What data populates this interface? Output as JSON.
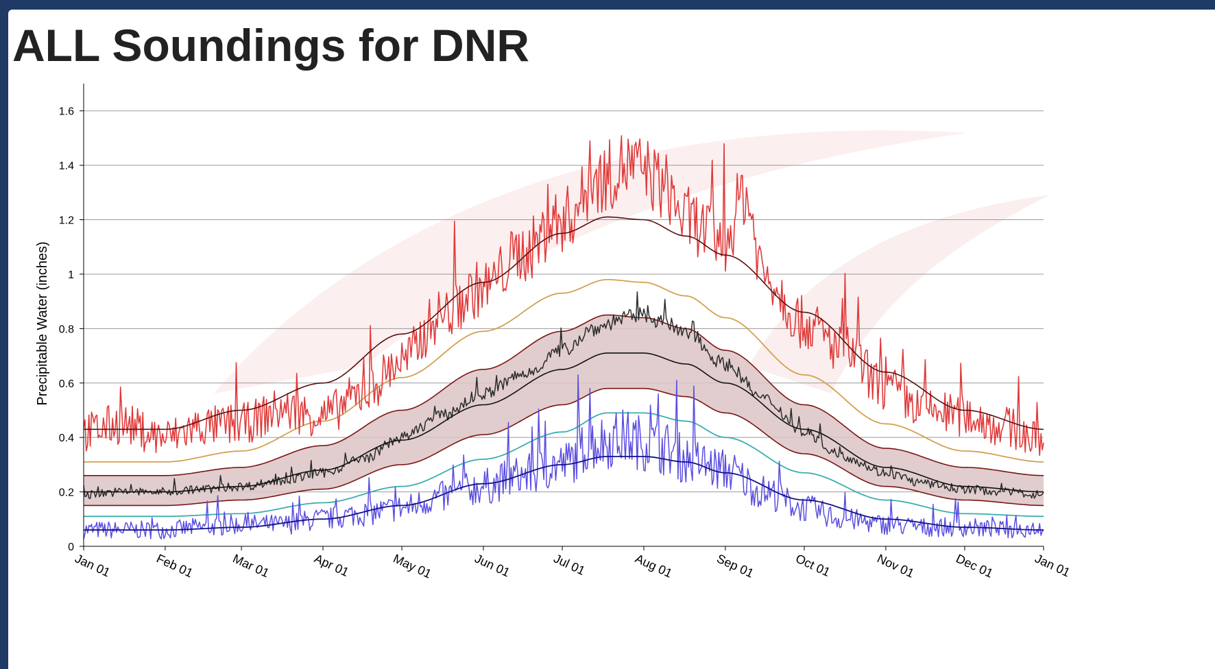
{
  "page": {
    "title": "ALL Soundings for DNR"
  },
  "colors": {
    "max": "#e03a3a",
    "p90": "#d4a050",
    "band_fill": "#dcc4c4",
    "band_edge": "#7a1414",
    "mean": "#111111",
    "daily_mean": "#2a2a2a",
    "p10": "#3aaeb0",
    "min": "#5a4de0",
    "min_mean": "#11118a",
    "max_mean": "#5a0e0e",
    "grid": "#9a9a9a"
  },
  "chart_data": {
    "type": "line",
    "title": "ALL Soundings for DNR",
    "xlabel": "",
    "ylabel": "Precipitable Water (inches)",
    "ylim": [
      0,
      1.7
    ],
    "yticks": [
      0,
      0.2,
      0.4,
      0.6,
      0.8,
      1,
      1.2,
      1.4,
      1.6
    ],
    "ytick_labels": [
      "0",
      "0.2",
      "0.4",
      "0.6",
      "0.8",
      "1",
      "1.2",
      "1.4",
      "1.6"
    ],
    "xlim_day": [
      1,
      366
    ],
    "xticks": [
      {
        "label": "Jan 01",
        "day": 1
      },
      {
        "label": "Feb 01",
        "day": 32
      },
      {
        "label": "Mar 01",
        "day": 61
      },
      {
        "label": "Apr 01",
        "day": 92
      },
      {
        "label": "May 01",
        "day": 122
      },
      {
        "label": "Jun 01",
        "day": 153
      },
      {
        "label": "Jul 01",
        "day": 183
      },
      {
        "label": "Aug 01",
        "day": 214
      },
      {
        "label": "Sep 01",
        "day": 245
      },
      {
        "label": "Oct 01",
        "day": 275
      },
      {
        "label": "Nov 01",
        "day": 306
      },
      {
        "label": "Dec 01",
        "day": 336
      },
      {
        "label": "Jan 01",
        "day": 366
      }
    ],
    "grid": "horizontal",
    "series": [
      {
        "key": "daily_max",
        "x": [
          1,
          15,
          32,
          46,
          61,
          76,
          92,
          107,
          122,
          137,
          153,
          168,
          183,
          198,
          207,
          214,
          222,
          230,
          245,
          252,
          260,
          275,
          290,
          306,
          321,
          336,
          351,
          366
        ],
        "values": [
          0.42,
          0.45,
          0.4,
          0.44,
          0.45,
          0.5,
          0.48,
          0.56,
          0.68,
          0.85,
          0.95,
          1.08,
          1.2,
          1.35,
          1.4,
          1.38,
          1.32,
          1.2,
          1.12,
          1.3,
          1.0,
          0.82,
          0.72,
          0.58,
          0.5,
          0.48,
          0.44,
          0.38
        ]
      },
      {
        "key": "max_mean",
        "x": [
          1,
          32,
          61,
          92,
          122,
          153,
          183,
          200,
          214,
          230,
          245,
          275,
          306,
          336,
          366
        ],
        "values": [
          0.43,
          0.43,
          0.5,
          0.6,
          0.78,
          0.97,
          1.15,
          1.21,
          1.2,
          1.14,
          1.07,
          0.86,
          0.64,
          0.5,
          0.43
        ]
      },
      {
        "key": "p90",
        "x": [
          1,
          32,
          61,
          92,
          122,
          153,
          183,
          200,
          214,
          230,
          245,
          275,
          306,
          336,
          366
        ],
        "values": [
          0.31,
          0.31,
          0.35,
          0.46,
          0.62,
          0.79,
          0.93,
          0.98,
          0.97,
          0.92,
          0.84,
          0.63,
          0.45,
          0.35,
          0.31
        ]
      },
      {
        "key": "p75",
        "x": [
          1,
          32,
          61,
          92,
          122,
          153,
          183,
          200,
          214,
          230,
          245,
          275,
          306,
          336,
          366
        ],
        "values": [
          0.26,
          0.26,
          0.29,
          0.37,
          0.5,
          0.65,
          0.79,
          0.85,
          0.84,
          0.8,
          0.72,
          0.52,
          0.36,
          0.29,
          0.26
        ]
      },
      {
        "key": "daily_mean",
        "x": [
          1,
          15,
          32,
          46,
          61,
          76,
          92,
          107,
          122,
          137,
          153,
          168,
          183,
          195,
          207,
          214,
          222,
          230,
          245,
          260,
          275,
          290,
          306,
          321,
          336,
          351,
          366
        ],
        "values": [
          0.19,
          0.2,
          0.2,
          0.21,
          0.22,
          0.24,
          0.27,
          0.32,
          0.4,
          0.48,
          0.56,
          0.63,
          0.72,
          0.8,
          0.84,
          0.85,
          0.82,
          0.78,
          0.67,
          0.54,
          0.42,
          0.33,
          0.27,
          0.23,
          0.21,
          0.2,
          0.19
        ]
      },
      {
        "key": "mean",
        "x": [
          1,
          32,
          61,
          92,
          122,
          153,
          183,
          200,
          214,
          230,
          245,
          275,
          306,
          336,
          366
        ],
        "values": [
          0.2,
          0.2,
          0.22,
          0.28,
          0.39,
          0.52,
          0.65,
          0.71,
          0.71,
          0.67,
          0.6,
          0.43,
          0.29,
          0.22,
          0.2
        ]
      },
      {
        "key": "p25",
        "x": [
          1,
          32,
          61,
          92,
          122,
          153,
          183,
          200,
          214,
          230,
          245,
          275,
          306,
          336,
          366
        ],
        "values": [
          0.15,
          0.15,
          0.17,
          0.21,
          0.3,
          0.41,
          0.52,
          0.58,
          0.58,
          0.55,
          0.49,
          0.34,
          0.22,
          0.17,
          0.15
        ]
      },
      {
        "key": "p10",
        "x": [
          1,
          32,
          61,
          92,
          122,
          153,
          183,
          200,
          214,
          230,
          245,
          275,
          306,
          336,
          366
        ],
        "values": [
          0.11,
          0.11,
          0.12,
          0.16,
          0.22,
          0.32,
          0.42,
          0.49,
          0.49,
          0.46,
          0.4,
          0.27,
          0.17,
          0.12,
          0.11
        ]
      },
      {
        "key": "min_mean",
        "x": [
          1,
          32,
          61,
          92,
          122,
          153,
          183,
          200,
          214,
          230,
          245,
          275,
          306,
          336,
          366
        ],
        "values": [
          0.06,
          0.06,
          0.07,
          0.1,
          0.15,
          0.23,
          0.3,
          0.33,
          0.33,
          0.31,
          0.27,
          0.17,
          0.1,
          0.07,
          0.06
        ]
      },
      {
        "key": "daily_min",
        "x": [
          1,
          15,
          32,
          46,
          61,
          76,
          92,
          107,
          122,
          137,
          153,
          168,
          183,
          195,
          207,
          214,
          222,
          230,
          245,
          260,
          275,
          290,
          306,
          321,
          336,
          351,
          366
        ],
        "values": [
          0.06,
          0.06,
          0.06,
          0.07,
          0.08,
          0.08,
          0.1,
          0.12,
          0.14,
          0.18,
          0.22,
          0.26,
          0.3,
          0.38,
          0.4,
          0.38,
          0.36,
          0.32,
          0.28,
          0.2,
          0.14,
          0.1,
          0.08,
          0.07,
          0.07,
          0.06,
          0.07
        ]
      }
    ]
  }
}
